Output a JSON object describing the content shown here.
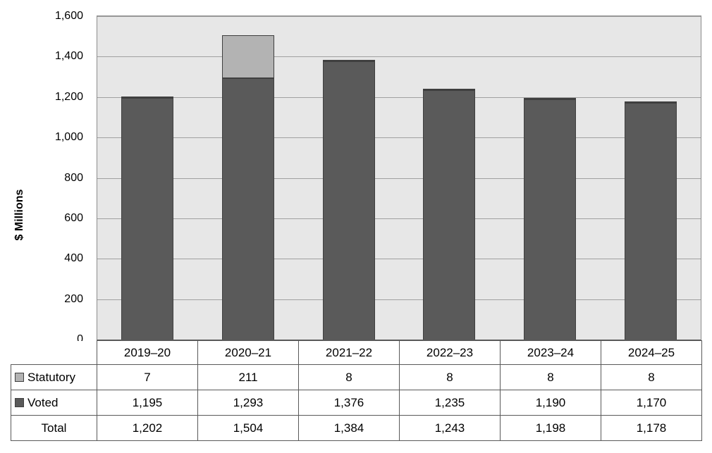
{
  "chart_data": {
    "type": "bar",
    "stacked": true,
    "title": "",
    "ylabel": "$ Millions",
    "ylim": [
      0,
      1600
    ],
    "grid": true,
    "legend_position": "table-left",
    "yticks": [
      {
        "value": 0,
        "label": "0"
      },
      {
        "value": 200,
        "label": "200"
      },
      {
        "value": 400,
        "label": "400"
      },
      {
        "value": 600,
        "label": "600"
      },
      {
        "value": 800,
        "label": "800"
      },
      {
        "value": 1000,
        "label": "1,000"
      },
      {
        "value": 1200,
        "label": "1,200"
      },
      {
        "value": 1400,
        "label": "1,400"
      },
      {
        "value": 1600,
        "label": "1,600"
      }
    ],
    "categories": [
      "2019–20",
      "2020–21",
      "2021–22",
      "2022–23",
      "2023–24",
      "2024–25"
    ],
    "series": [
      {
        "name": "Statutory",
        "color": "#b3b3b3",
        "values": [
          7,
          211,
          8,
          8,
          8,
          8
        ],
        "display": [
          "7",
          "211",
          "8",
          "8",
          "8",
          "8"
        ]
      },
      {
        "name": "Voted",
        "color": "#5a5a5a",
        "values": [
          1195,
          1293,
          1376,
          1235,
          1190,
          1170
        ],
        "display": [
          "1,195",
          "1,293",
          "1,376",
          "1,235",
          "1,190",
          "1,170"
        ]
      }
    ],
    "totals": {
      "label": "Total",
      "values": [
        1202,
        1504,
        1384,
        1243,
        1198,
        1178
      ],
      "display": [
        "1,202",
        "1,504",
        "1,384",
        "1,243",
        "1,198",
        "1,178"
      ]
    },
    "colors": {
      "plot_bg": "#e7e7e7",
      "gridline": "#a0a0a0",
      "plot_border": "#8c8c8c",
      "axis_line": "#595959",
      "bar_outline": "#3f3f3f",
      "table_border": "#595959",
      "text": "#000000"
    }
  }
}
